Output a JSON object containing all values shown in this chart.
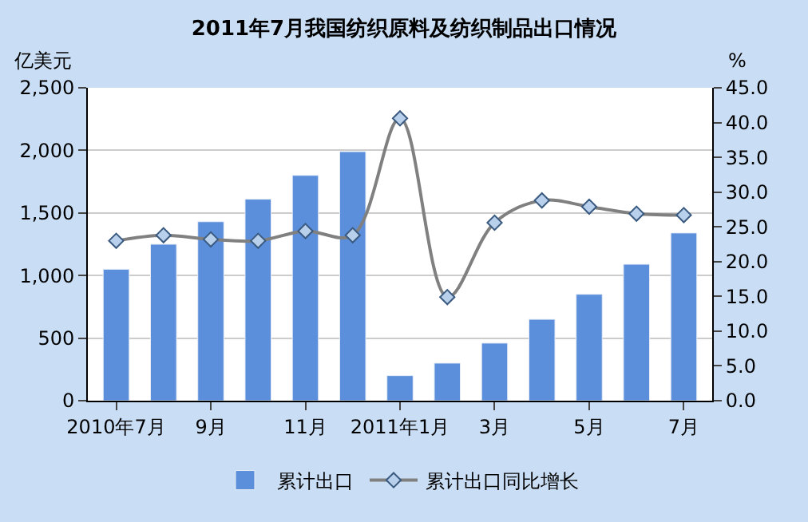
{
  "chart_data": {
    "type": "bar",
    "title": "2011年7月我国纺织原料及纺织制品出口情况",
    "ylabel": "亿美元",
    "y2label": "%",
    "categories": [
      "2010年7月",
      null,
      "9月",
      null,
      "11月",
      null,
      "2011年1月",
      null,
      "3月",
      null,
      "5月",
      null,
      "7月"
    ],
    "series": [
      {
        "name": "累计出口",
        "color": "#5b8fdc",
        "values": [
          1050,
          1250,
          1430,
          1610,
          1800,
          1990,
          200,
          300,
          460,
          650,
          850,
          1090,
          1340
        ]
      },
      {
        "name": "累计出口同比增长",
        "type": "line",
        "axis": "y2",
        "color": "#808080",
        "marker": "diamond",
        "values": [
          23.0,
          23.8,
          23.2,
          23.0,
          24.4,
          23.8,
          40.6,
          14.9,
          25.6,
          28.8,
          27.9,
          26.9,
          26.7
        ]
      }
    ],
    "ylim": [
      0,
      2500
    ],
    "yticks": [
      0,
      500,
      {
        "value": 1000,
        "label": "1,000"
      },
      {
        "value": 1500,
        "label": "1,500"
      },
      {
        "value": 2000,
        "label": "2,000"
      },
      {
        "value": 2500,
        "label": "2,500"
      }
    ],
    "y2lim": [
      0,
      45
    ],
    "y2ticks": [
      {
        "value": 0,
        "label": "0.0"
      },
      {
        "value": 5,
        "label": "5.0"
      },
      {
        "value": 10,
        "label": "10.0"
      },
      {
        "value": 15,
        "label": "15.0"
      },
      {
        "value": 20,
        "label": "20.0"
      },
      {
        "value": 25,
        "label": "25.0"
      },
      {
        "value": 30,
        "label": "30.0"
      },
      {
        "value": 35,
        "label": "35.0"
      },
      {
        "value": 40,
        "label": "40.0"
      },
      {
        "value": 45,
        "label": "45.0"
      }
    ],
    "grid": "y",
    "legend": "bottom"
  }
}
